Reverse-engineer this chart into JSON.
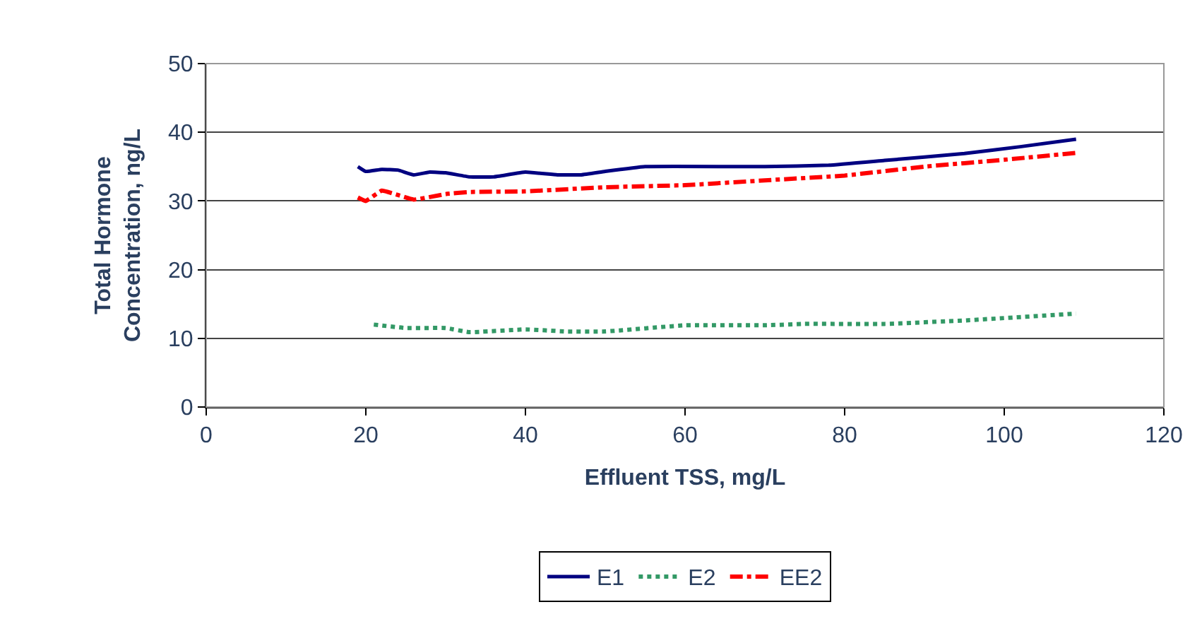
{
  "chart_data": {
    "type": "line",
    "xlabel": "Effluent TSS, mg/L",
    "ylabel": "Total Hormone\nConcentration, ng/L",
    "xlim": [
      0,
      120
    ],
    "xticks": [
      0,
      20,
      40,
      60,
      80,
      100,
      120
    ],
    "ylim": [
      0,
      50
    ],
    "yticks": [
      0,
      10,
      20,
      30,
      40,
      50
    ],
    "grid": "y",
    "legend": "bottom",
    "marker": "none",
    "series": [
      {
        "name": "E1",
        "color": "#000080",
        "line_style": "solid",
        "x": [
          19,
          20,
          22,
          24,
          26,
          28,
          30,
          33,
          36,
          40,
          44,
          47,
          50,
          55,
          70,
          78,
          85,
          95,
          102,
          109
        ],
        "values": [
          35,
          34.3,
          34.6,
          34.5,
          33.8,
          34.2,
          34.1,
          33.5,
          33.5,
          34.2,
          33.8,
          33.8,
          34.3,
          35,
          35,
          35.2,
          35.9,
          36.9,
          37.9,
          39
        ]
      },
      {
        "name": "E2",
        "color": "#339966",
        "line_style": "dotted",
        "x": [
          21,
          25,
          30,
          33,
          40,
          45,
          50,
          60,
          70,
          75,
          85,
          95,
          109
        ],
        "values": [
          12,
          11.5,
          11.5,
          10.9,
          11.3,
          11,
          11,
          11.9,
          11.9,
          12.1,
          12.1,
          12.6,
          13.6
        ]
      },
      {
        "name": "EE2",
        "color": "#ff0000",
        "line_style": "dashdot",
        "x": [
          19,
          20,
          22,
          26,
          30,
          33,
          40,
          50,
          60,
          70,
          80,
          90,
          100,
          109
        ],
        "values": [
          30.5,
          30,
          31.5,
          30.2,
          31,
          31.3,
          31.4,
          32,
          32.3,
          33,
          33.7,
          35,
          36,
          37
        ]
      }
    ]
  }
}
